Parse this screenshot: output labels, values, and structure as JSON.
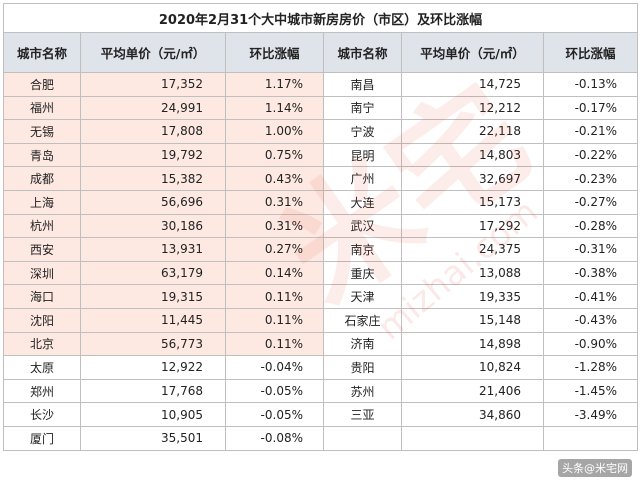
{
  "title": "2020年2月31个大中城市新房房价（市区）及环比涨幅",
  "headers": [
    "城市名称",
    "平均单价（元/㎡）",
    "环比涨幅",
    "城市名称",
    "平均单价（元/㎡）",
    "环比涨幅"
  ],
  "left": [
    {
      "city": "合肥",
      "price": "17,352",
      "change": "1.17%"
    },
    {
      "city": "福州",
      "price": "24,991",
      "change": "1.14%"
    },
    {
      "city": "无锡",
      "price": "17,808",
      "change": "1.00%"
    },
    {
      "city": "青岛",
      "price": "19,792",
      "change": "0.75%"
    },
    {
      "city": "成都",
      "price": "15,382",
      "change": "0.43%"
    },
    {
      "city": "上海",
      "price": "56,696",
      "change": "0.31%"
    },
    {
      "city": "杭州",
      "price": "30,186",
      "change": "0.31%"
    },
    {
      "city": "西安",
      "price": "13,931",
      "change": "0.27%"
    },
    {
      "city": "深圳",
      "price": "63,179",
      "change": "0.14%"
    },
    {
      "city": "海口",
      "price": "19,315",
      "change": "0.11%"
    },
    {
      "city": "沈阳",
      "price": "11,445",
      "change": "0.11%"
    },
    {
      "city": "北京",
      "price": "56,773",
      "change": "0.11%"
    },
    {
      "city": "太原",
      "price": "12,922",
      "change": "-0.04%"
    },
    {
      "city": "郑州",
      "price": "17,768",
      "change": "-0.05%"
    },
    {
      "city": "长沙",
      "price": "10,905",
      "change": "-0.05%"
    },
    {
      "city": "厦门",
      "price": "35,501",
      "change": "-0.08%"
    }
  ],
  "right": [
    {
      "city": "南昌",
      "price": "14,725",
      "change": "-0.13%"
    },
    {
      "city": "南宁",
      "price": "12,212",
      "change": "-0.17%"
    },
    {
      "city": "宁波",
      "price": "22,118",
      "change": "-0.21%"
    },
    {
      "city": "昆明",
      "price": "14,803",
      "change": "-0.22%"
    },
    {
      "city": "广州",
      "price": "32,697",
      "change": "-0.23%"
    },
    {
      "city": "大连",
      "price": "15,173",
      "change": "-0.27%"
    },
    {
      "city": "武汉",
      "price": "17,292",
      "change": "-0.28%"
    },
    {
      "city": "南京",
      "price": "24,375",
      "change": "-0.31%"
    },
    {
      "city": "重庆",
      "price": "13,088",
      "change": "-0.38%"
    },
    {
      "city": "天津",
      "price": "19,335",
      "change": "-0.41%"
    },
    {
      "city": "石家庄",
      "price": "15,148",
      "change": "-0.43%"
    },
    {
      "city": "济南",
      "price": "14,898",
      "change": "-0.90%"
    },
    {
      "city": "贵阳",
      "price": "10,824",
      "change": "-1.28%"
    },
    {
      "city": "苏州",
      "price": "21,406",
      "change": "-1.45%"
    },
    {
      "city": "三亚",
      "price": "34,860",
      "change": "-3.49%"
    },
    {
      "city": "",
      "price": "",
      "change": ""
    }
  ],
  "pink_rows_left": 12,
  "colors": {
    "header_bg": "#dfe3ea",
    "positive_row_bg": "#fde9e2",
    "border": "#bfbfbf"
  },
  "watermark": "米宅 mizhai.com",
  "credit": "头条@米宅网"
}
